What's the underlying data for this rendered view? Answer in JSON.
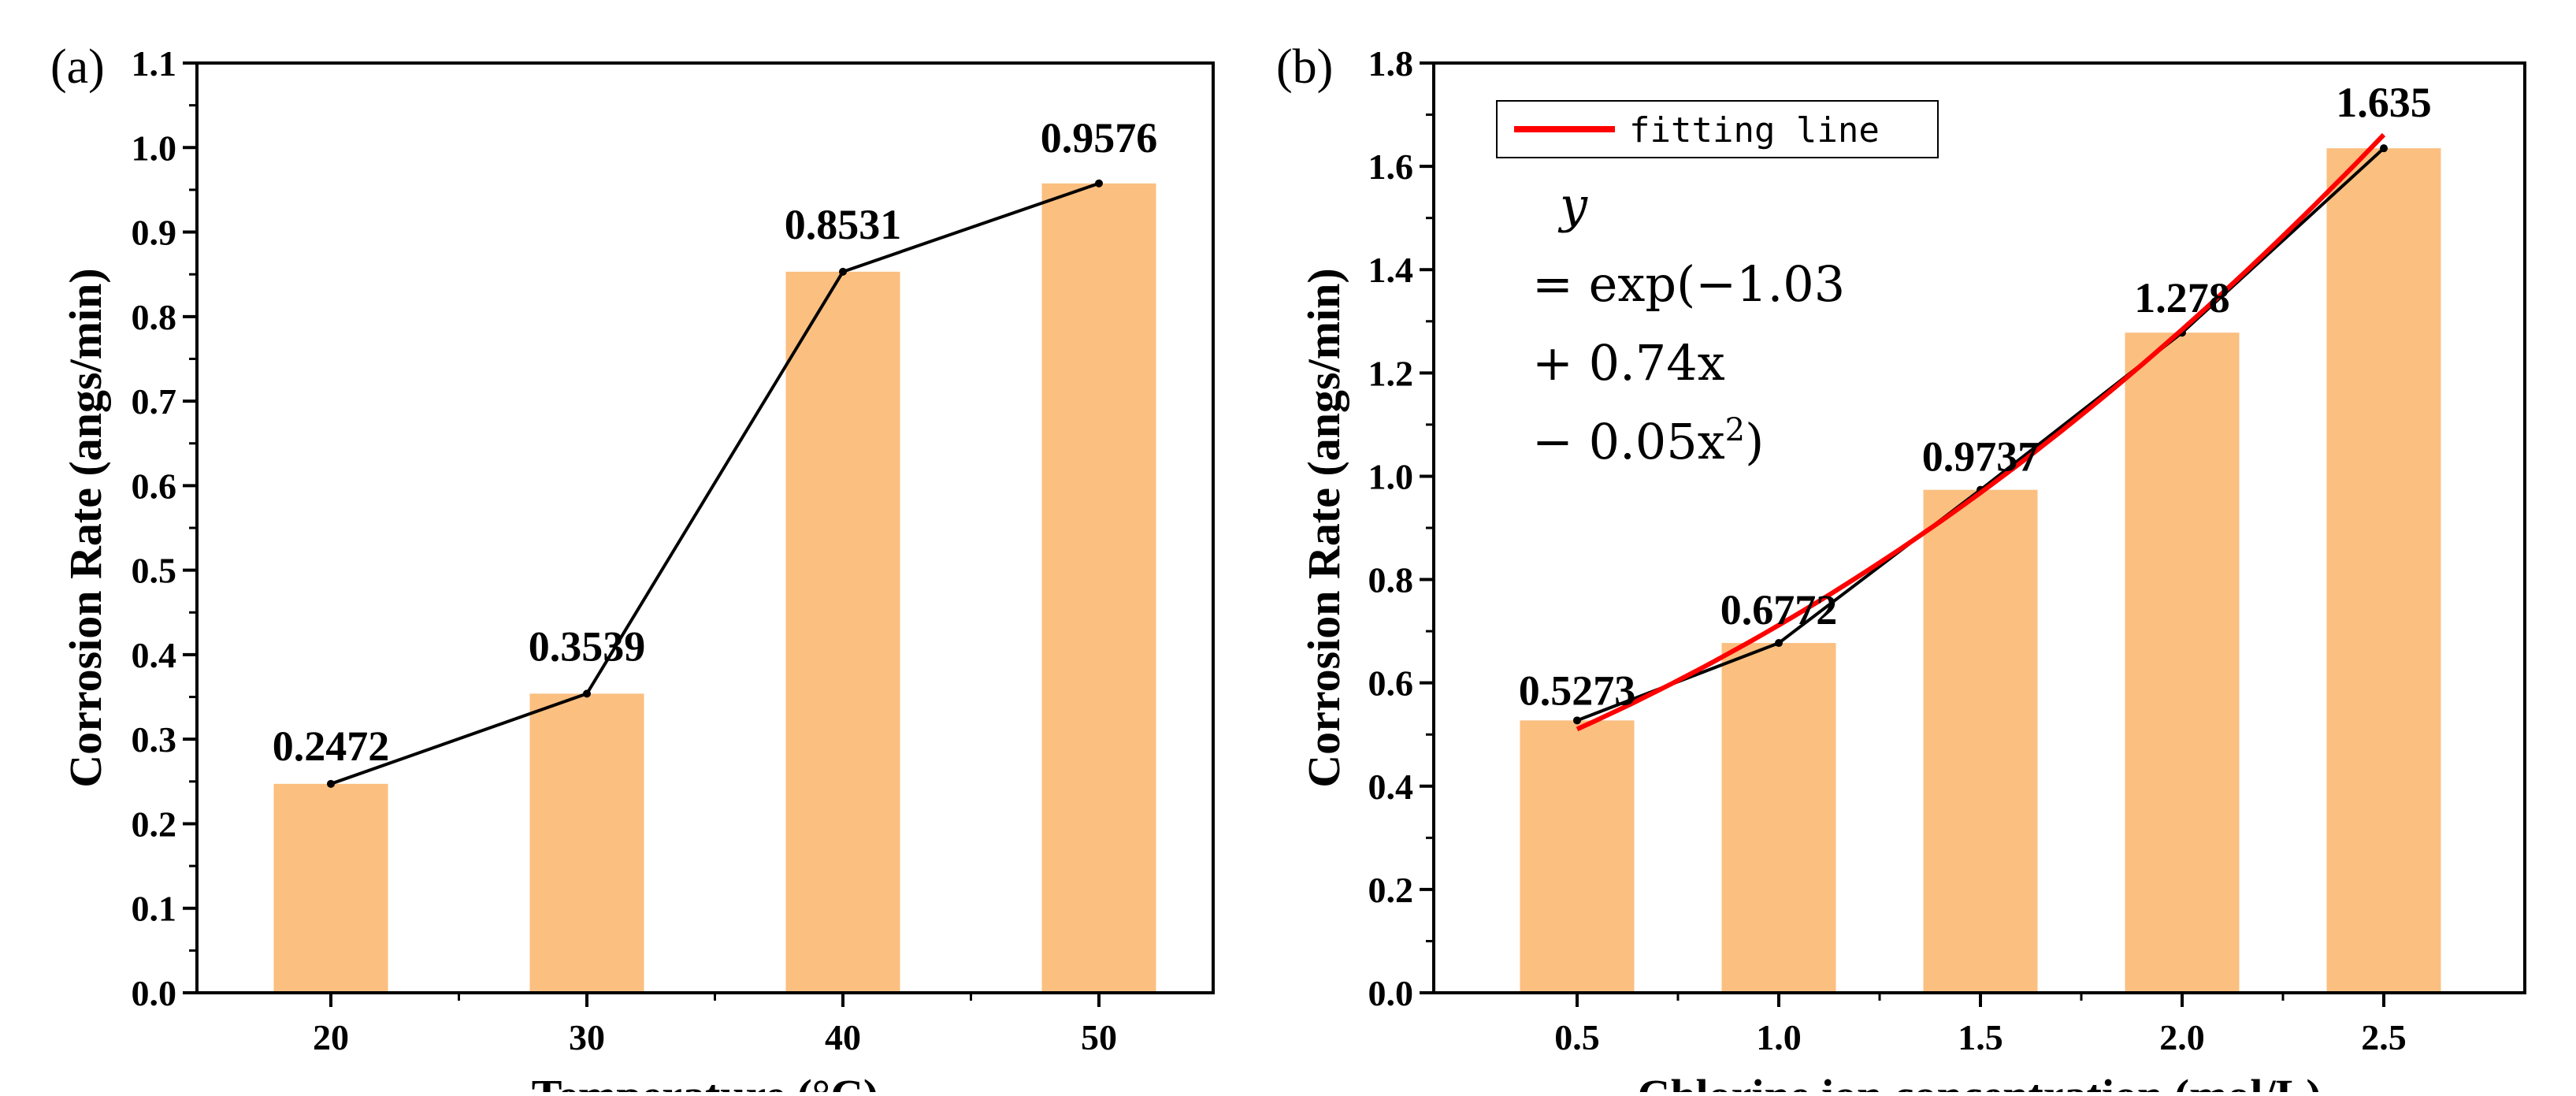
{
  "figure": {
    "panel_a_label": "(a)",
    "panel_b_label": "(b)"
  },
  "chart_data": [
    {
      "type": "bar",
      "categories": [
        "20",
        "30",
        "40",
        "50"
      ],
      "values": [
        0.2472,
        0.3539,
        0.8531,
        0.9576
      ],
      "value_labels": [
        "0.2472",
        "0.3539",
        "0.8531",
        "0.9576"
      ],
      "line_overlay": true,
      "xlabel": "Temperature (°C)",
      "ylabel": "Corrosion Rate (angs/min)",
      "ylim": [
        0,
        1.1
      ],
      "yticks": [
        0,
        0.1,
        0.2,
        0.3,
        0.4,
        0.5,
        0.6,
        0.7,
        0.8,
        0.9,
        1.0,
        1.1
      ],
      "ytick_labels": [
        "0.0",
        "0.1",
        "0.2",
        "0.3",
        "0.4",
        "0.5",
        "0.6",
        "0.7",
        "0.8",
        "0.9",
        "1.0",
        "1.1"
      ],
      "grid": false,
      "bar_color": "#fbbf80",
      "line_color": "#000000"
    },
    {
      "type": "bar",
      "categories": [
        "0.5",
        "1.0",
        "1.5",
        "2.0",
        "2.5"
      ],
      "x": [
        0.5,
        1.0,
        1.5,
        2.0,
        2.5
      ],
      "values": [
        0.5273,
        0.6772,
        0.9737,
        1.278,
        1.635
      ],
      "value_labels": [
        "0.5273",
        "0.6772",
        "0.9737",
        "1.278",
        "1.635"
      ],
      "line_overlay": true,
      "xlabel": "Chlorine ion concentration (mol/L)",
      "ylabel": "Corrosion Rate (angs/min)",
      "ylim": [
        0,
        1.8
      ],
      "yticks": [
        0,
        0.2,
        0.4,
        0.6,
        0.8,
        1.0,
        1.2,
        1.4,
        1.6,
        1.8
      ],
      "ytick_labels": [
        "0.0",
        "0.2",
        "0.4",
        "0.6",
        "0.8",
        "1.0",
        "1.2",
        "1.4",
        "1.6",
        "1.8"
      ],
      "grid": false,
      "bar_color": "#fbbf80",
      "line_color": "#000000",
      "fit": {
        "name": "fitting line",
        "color": "#ff0000",
        "coefficients": [
          -1.03,
          0.74,
          -0.05
        ],
        "x_range": [
          0.5,
          2.5
        ]
      },
      "legend_position": "top-left",
      "formula_lines": [
        "y",
        "= exp(−1.03",
        "+ 0.74x",
        "− 0.05x",
        "2",
        ")"
      ]
    }
  ]
}
